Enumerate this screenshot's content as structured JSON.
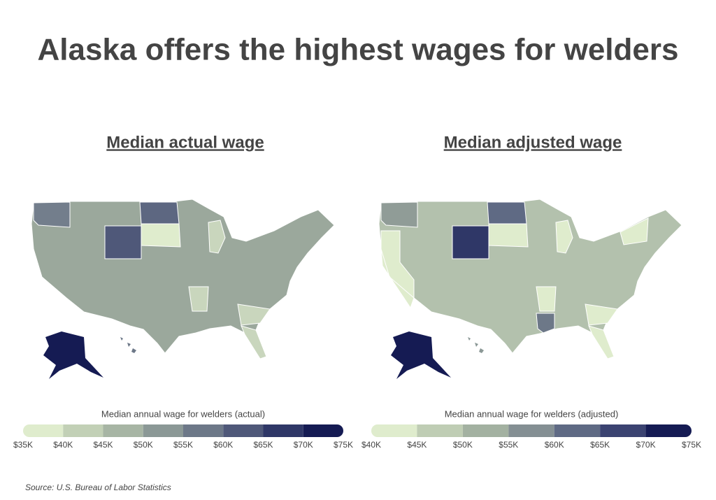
{
  "title": "Alaska offers the highest wages for welders",
  "maps": [
    {
      "title": "Median actual wage",
      "legend_title": "Median annual wage for welders (actual)",
      "legend": {
        "ticks": [
          {
            "value": 35000,
            "label": "$35K"
          },
          {
            "value": 40000,
            "label": "$40K"
          },
          {
            "value": 45000,
            "label": "$45K"
          },
          {
            "value": 50000,
            "label": "$50K"
          },
          {
            "value": 55000,
            "label": "$55K"
          },
          {
            "value": 60000,
            "label": "$60K"
          },
          {
            "value": 65000,
            "label": "$65K"
          },
          {
            "value": 70000,
            "label": "$70K"
          },
          {
            "value": 75000,
            "label": "$75K"
          }
        ],
        "colors": [
          "#dfeccd",
          "#c2d0b6",
          "#a7b5a4",
          "#8b9896",
          "#6d7888",
          "#4f5879",
          "#2f3767",
          "#151b53"
        ]
      }
    },
    {
      "title": "Median adjusted wage",
      "legend_title": "Median annual wage for welders (adjusted)",
      "legend": {
        "ticks": [
          {
            "value": 40000,
            "label": "$40K"
          },
          {
            "value": 45000,
            "label": "$45K"
          },
          {
            "value": 50000,
            "label": "$50K"
          },
          {
            "value": 55000,
            "label": "$55K"
          },
          {
            "value": 60000,
            "label": "$60K"
          },
          {
            "value": 65000,
            "label": "$65K"
          },
          {
            "value": 70000,
            "label": "$70K"
          },
          {
            "value": 75000,
            "label": "$75K"
          }
        ],
        "colors": [
          "#dfeccd",
          "#bfcdb4",
          "#a3b1a1",
          "#848f93",
          "#5f6a84",
          "#3b4371",
          "#151b53"
        ]
      }
    }
  ],
  "source": "Source:  U.S. Bureau of Labor Statistics"
}
